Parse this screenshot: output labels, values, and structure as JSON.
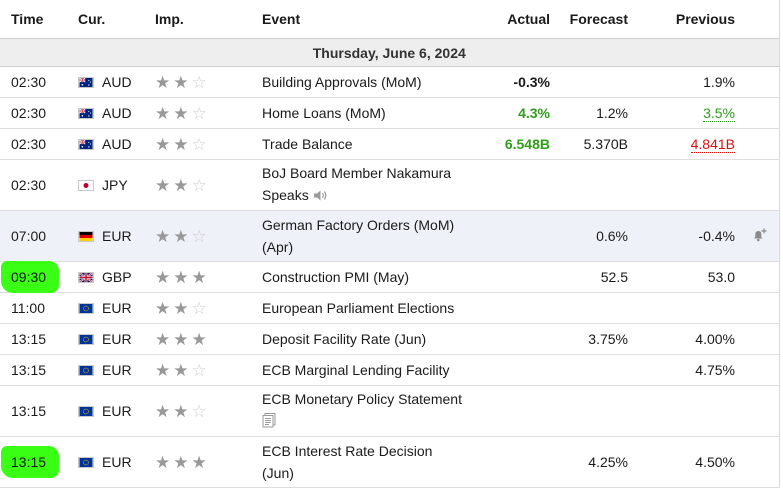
{
  "headers": {
    "time": "Time",
    "currency": "Cur.",
    "importance": "Imp.",
    "event": "Event",
    "actual": "Actual",
    "forecast": "Forecast",
    "previous": "Previous"
  },
  "date_label": "Thursday, June 6, 2024",
  "rows": [
    {
      "time": "02:30",
      "flag": "australia-flag",
      "currency": "AUD",
      "stars": 2,
      "event": "Building Approvals (MoM)",
      "actual": "-0.3%",
      "forecast": "",
      "previous": "1.9%"
    },
    {
      "time": "02:30",
      "flag": "australia-flag",
      "currency": "AUD",
      "stars": 2,
      "event": "Home Loans (MoM)",
      "actual": "4.3%",
      "forecast": "1.2%",
      "previous": "3.5%"
    },
    {
      "time": "02:30",
      "flag": "australia-flag",
      "currency": "AUD",
      "stars": 2,
      "event": "Trade Balance",
      "actual": "6.548B",
      "forecast": "5.370B",
      "previous": "4.841B"
    },
    {
      "time": "02:30",
      "flag": "japan-flag",
      "currency": "JPY",
      "stars": 2,
      "event_line1": "BoJ Board Member Nakamura",
      "event_line2": "Speaks",
      "actual": "",
      "forecast": "",
      "previous": ""
    },
    {
      "time": "07:00",
      "flag": "germany-flag",
      "currency": "EUR",
      "stars": 2,
      "event_line1": "German Factory Orders (MoM)",
      "event_line2": "(Apr)",
      "actual": "",
      "forecast": "0.6%",
      "previous": "-0.4%"
    },
    {
      "time": "09:30",
      "flag": "uk-flag",
      "currency": "GBP",
      "stars": 3,
      "event": "Construction PMI (May)",
      "actual": "",
      "forecast": "52.5",
      "previous": "53.0"
    },
    {
      "time": "11:00",
      "flag": "eu-flag",
      "currency": "EUR",
      "stars": 2,
      "event": "European Parliament Elections",
      "actual": "",
      "forecast": "",
      "previous": ""
    },
    {
      "time": "13:15",
      "flag": "eu-flag",
      "currency": "EUR",
      "stars": 3,
      "event": "Deposit Facility Rate (Jun)",
      "actual": "",
      "forecast": "3.75%",
      "previous": "4.00%"
    },
    {
      "time": "13:15",
      "flag": "eu-flag",
      "currency": "EUR",
      "stars": 2,
      "event": "ECB Marginal Lending Facility",
      "actual": "",
      "forecast": "",
      "previous": "4.75%"
    },
    {
      "time": "13:15",
      "flag": "eu-flag",
      "currency": "EUR",
      "stars": 2,
      "event": "ECB Monetary Policy Statement",
      "actual": "",
      "forecast": "",
      "previous": ""
    },
    {
      "time": "13:15",
      "flag": "eu-flag",
      "currency": "EUR",
      "stars": 3,
      "event_line1": "ECB Interest Rate Decision",
      "event_line2": "(Jun)",
      "actual": "",
      "forecast": "4.25%",
      "previous": "4.50%"
    }
  ],
  "colors": {
    "positive": "#2e9e1b",
    "negative": "#d8110f",
    "highlighter": "#39ff14",
    "hover_row": "#eef2f8"
  },
  "icons": {
    "speaker": "speaker-icon",
    "document": "document-icon",
    "alert": "bell-add-icon"
  }
}
